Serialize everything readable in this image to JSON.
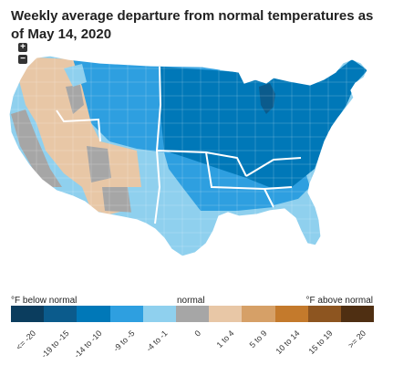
{
  "title": "Weekly average departure from normal temperatures as of May 14, 2020",
  "controls": {
    "zoom_in": "+",
    "zoom_out": "−"
  },
  "legend": {
    "below_label": "°F below normal",
    "normal_label": "normal",
    "above_label": "°F above normal",
    "bins": [
      {
        "label": "<= -20",
        "color": "#0b3d5e"
      },
      {
        "label": "-19 to -15",
        "color": "#0b5b8c"
      },
      {
        "label": "-14 to -10",
        "color": "#0078b8"
      },
      {
        "label": "-9 to -5",
        "color": "#2e9fe0"
      },
      {
        "label": "-4 to -1",
        "color": "#8fd0ee"
      },
      {
        "label": "0",
        "color": "#a6a6a6"
      },
      {
        "label": "1 to 4",
        "color": "#e8c7a6"
      },
      {
        "label": "5 to 9",
        "color": "#d6a067"
      },
      {
        "label": "10 to 14",
        "color": "#c47a2c"
      },
      {
        "label": "15 to 19",
        "color": "#8d5520"
      },
      {
        "label": ">= 20",
        "color": "#4f2f12"
      }
    ]
  }
}
